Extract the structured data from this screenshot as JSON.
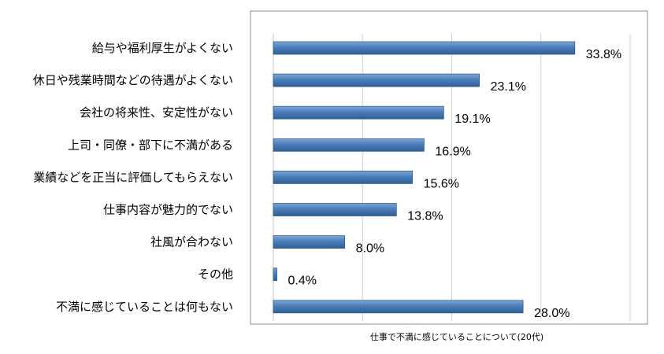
{
  "chart_data": {
    "type": "bar",
    "orientation": "horizontal",
    "categories": [
      "給与や福利厚生がよくない",
      "休日や残業時間などの待遇がよくない",
      "会社の将来性、安定性がない",
      "上司・同僚・部下に不満がある",
      "業績などを正当に評価してもらえない",
      "仕事内容が魅力的でない",
      "社風が合わない",
      "その他",
      "不満に感じていることは何もない"
    ],
    "values": [
      33.8,
      23.1,
      19.1,
      16.9,
      15.6,
      13.8,
      8.0,
      0.4,
      28.0
    ],
    "value_labels": [
      "33.8%",
      "23.1%",
      "19.1%",
      "16.9%",
      "15.6%",
      "13.8%",
      "8.0%",
      "0.4%",
      "28.0%"
    ],
    "xlabel": "仕事で不満に感じていることについて(20代)",
    "xlim": [
      0,
      40
    ],
    "grid": true,
    "bar_color": "#4a7ebb",
    "bar_color_light": "#7fa6d6",
    "bar_color_dark": "#2f5f96",
    "grid_color": "#d0d0d0",
    "frame_color": "#8c8c8c"
  }
}
